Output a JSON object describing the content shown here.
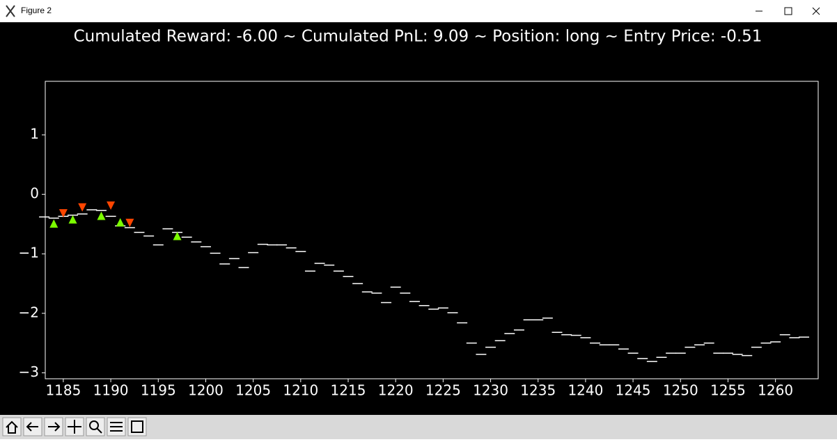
{
  "window": {
    "title": "Figure 2"
  },
  "chart_data": {
    "type": "step-dash",
    "title": "Cumulated Reward: -6.00 ~ Cumulated PnL: 9.09 ~ Position: long ~ Entry Price: -0.51",
    "x": [
      1183,
      1184,
      1185,
      1186,
      1187,
      1188,
      1189,
      1190,
      1191,
      1192,
      1193,
      1194,
      1195,
      1196,
      1197,
      1198,
      1199,
      1200,
      1201,
      1202,
      1203,
      1204,
      1205,
      1206,
      1207,
      1208,
      1209,
      1210,
      1211,
      1212,
      1213,
      1214,
      1215,
      1216,
      1217,
      1218,
      1219,
      1220,
      1221,
      1222,
      1223,
      1224,
      1225,
      1226,
      1227,
      1228,
      1229,
      1230,
      1231,
      1232,
      1233,
      1234,
      1235,
      1236,
      1237,
      1238,
      1239,
      1240,
      1241,
      1242,
      1243,
      1244,
      1245,
      1246,
      1247,
      1248,
      1249,
      1250,
      1251,
      1252,
      1253,
      1254,
      1255,
      1256,
      1257,
      1258,
      1259,
      1260,
      1261,
      1262,
      1263
    ],
    "values": [
      -0.38,
      -0.4,
      -0.37,
      -0.35,
      -0.33,
      -0.26,
      -0.27,
      -0.37,
      -0.53,
      -0.56,
      -0.64,
      -0.7,
      -0.85,
      -0.58,
      -0.64,
      -0.72,
      -0.8,
      -0.88,
      -0.99,
      -1.17,
      -1.08,
      -1.23,
      -0.98,
      -0.84,
      -0.85,
      -0.85,
      -0.9,
      -0.96,
      -1.29,
      -1.16,
      -1.19,
      -1.29,
      -1.38,
      -1.5,
      -1.64,
      -1.66,
      -1.82,
      -1.56,
      -1.66,
      -1.8,
      -1.87,
      -1.93,
      -1.91,
      -1.99,
      -2.16,
      -2.5,
      -2.69,
      -2.57,
      -2.46,
      -2.34,
      -2.28,
      -2.11,
      -2.11,
      -2.08,
      -2.32,
      -2.36,
      -2.37,
      -2.41,
      -2.5,
      -2.53,
      -2.53,
      -2.6,
      -2.67,
      -2.76,
      -2.81,
      -2.74,
      -2.67,
      -2.67,
      -2.57,
      -2.53,
      -2.5,
      -2.67,
      -2.67,
      -2.69,
      -2.71,
      -2.57,
      -2.5,
      -2.48,
      -2.36,
      -2.41,
      -2.4
    ],
    "color": "#ffffff",
    "buys": {
      "x": [
        1184,
        1186,
        1189,
        1191,
        1197
      ],
      "values": [
        -0.49,
        -0.42,
        -0.36,
        -0.47,
        -0.7
      ],
      "color": "#7cfc00"
    },
    "sells": {
      "x": [
        1185,
        1187,
        1190,
        1192
      ],
      "values": [
        -0.32,
        -0.22,
        -0.19,
        -0.48
      ],
      "color": "#ff4500"
    },
    "xlim": [
      1183.1,
      1264.5
    ],
    "ylim": [
      -3.1,
      1.9
    ],
    "xticks": [
      1185,
      1190,
      1195,
      1200,
      1205,
      1210,
      1215,
      1220,
      1225,
      1230,
      1235,
      1240,
      1245,
      1250,
      1255,
      1260
    ],
    "yticks": [
      {
        "value": -3,
        "label": "−3"
      },
      {
        "value": -2,
        "label": "−2"
      },
      {
        "value": -1,
        "label": "−1"
      },
      0,
      1
    ]
  }
}
